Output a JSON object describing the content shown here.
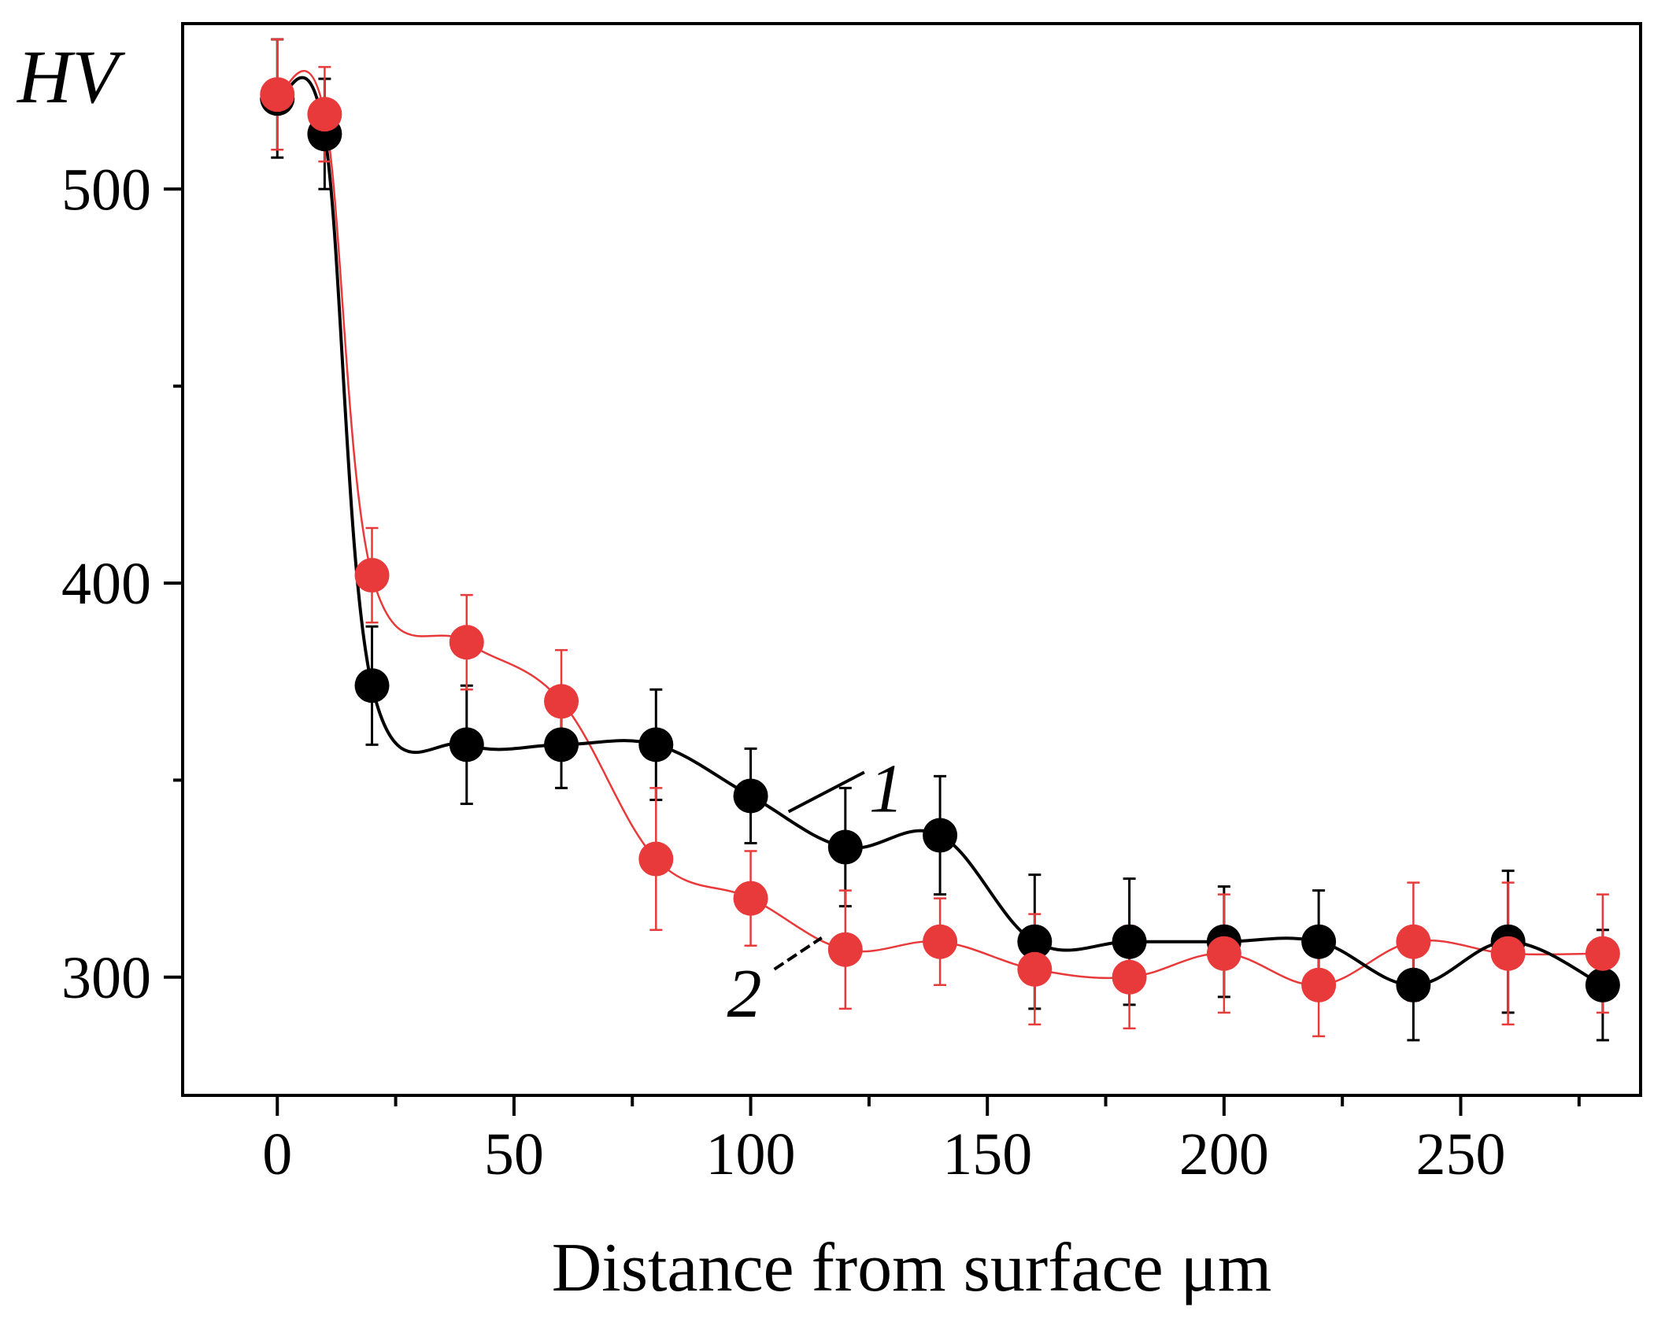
{
  "chart_data": {
    "type": "scatter",
    "title": "",
    "xlabel": "Distance from surface μm",
    "ylabel": "HV",
    "xlim": [
      -20,
      288
    ],
    "ylim": [
      270,
      542
    ],
    "xticks": [
      0,
      50,
      100,
      150,
      200,
      250
    ],
    "xticks_minor": [
      25,
      75,
      125,
      175,
      225,
      275
    ],
    "yticks": [
      300,
      400,
      500
    ],
    "yticks_minor": [
      350,
      450
    ],
    "grid": false,
    "series": [
      {
        "name": "1",
        "color": "#000000",
        "x": [
          0,
          10,
          20,
          40,
          60,
          80,
          100,
          120,
          140,
          160,
          180,
          200,
          220,
          240,
          260,
          280
        ],
        "y": [
          523,
          514,
          374,
          359,
          359,
          359,
          346,
          333,
          336,
          309,
          309,
          309,
          309,
          298,
          309,
          298
        ],
        "err": [
          15,
          14,
          15,
          15,
          11,
          14,
          12,
          15,
          15,
          17,
          16,
          14,
          13,
          14,
          18,
          14
        ]
      },
      {
        "name": "2",
        "color": "#e83a3a",
        "x": [
          0,
          10,
          20,
          40,
          60,
          80,
          100,
          120,
          140,
          160,
          180,
          200,
          220,
          240,
          260,
          280
        ],
        "y": [
          524,
          519,
          402,
          385,
          370,
          330,
          320,
          307,
          309,
          302,
          300,
          306,
          298,
          309,
          306,
          306
        ],
        "err": [
          14,
          12,
          12,
          12,
          13,
          18,
          12,
          15,
          11,
          14,
          13,
          15,
          13,
          15,
          18,
          15
        ]
      }
    ],
    "annotations": [
      {
        "text": "1",
        "series": "1"
      },
      {
        "text": "2",
        "series": "2"
      }
    ]
  }
}
